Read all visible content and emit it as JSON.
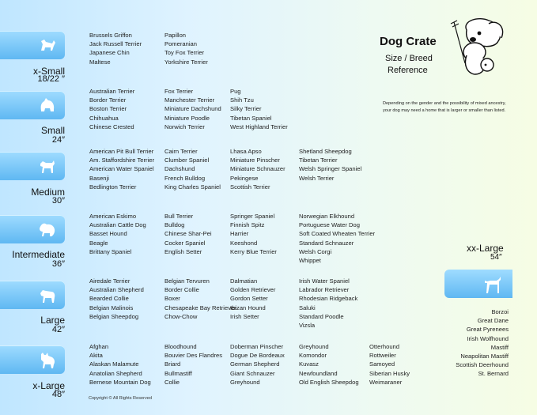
{
  "header": {
    "title": "Dog Crate",
    "subtitle_line1": "Size / Breed",
    "subtitle_line2": "Reference",
    "note_line1": "Depending on the gender and the possibility of mixed ancestry,",
    "note_line2": "your dog may need  a home that is larger or smaller than listed."
  },
  "sizes": [
    {
      "name": "x-Small",
      "dim": "18/22 ″",
      "icon": "small-dog-silhouette-icon",
      "columns": [
        [
          "Brussels Griffon",
          "Jack Russell Terrier",
          "Japanese Chin",
          "Maltese"
        ],
        [
          "Papillon",
          "Pomeranian",
          "Toy Fox Terrier",
          "Yorkshire Terrier"
        ]
      ]
    },
    {
      "name": "Small",
      "dim": "24″",
      "icon": "small-fluffy-dog-icon",
      "columns": [
        [
          "Australian Terrier",
          "Border Terrier",
          "Boston Terrier",
          "Chihuahua",
          "Chinese Crested"
        ],
        [
          "Fox Terrier",
          "Manchester Terrier",
          "Miniature Dachshund",
          "Miniature Poodle",
          "Norwich Terrier"
        ],
        [
          "Pug",
          "Shih Tzu",
          "Silky Terrier",
          "Tibetan Spaniel",
          "West Highland Terrier"
        ]
      ]
    },
    {
      "name": "Medium",
      "dim": "30″",
      "icon": "terrier-dog-icon",
      "columns": [
        [
          "American Pit Bull Terrier",
          "Am. Staffordshire Terrier",
          "American Water Spaniel",
          "Basenji",
          "Bedlington Terrier"
        ],
        [
          "Cairn Terrier",
          "Clumber Spaniel",
          "Dachshund",
          "French Bulldog",
          "King Charles Spaniel"
        ],
        [
          "Lhasa Apso",
          "Miniature Pinscher",
          "Miniature Schnauzer",
          "Pekingese",
          "Scottish Terrier"
        ],
        [
          "Shetland Sheepdog",
          "Tibetan Terrier",
          "Welsh Springer Spaniel",
          "Welsh Terrier"
        ]
      ]
    },
    {
      "name": "Intermediate",
      "dim": "36″",
      "icon": "poodle-dog-icon",
      "columns": [
        [
          "American Eskimo",
          "Australian Cattle Dog",
          "Basset Hound",
          "Beagle",
          "Brittany Spaniel"
        ],
        [
          "Bull Terrier",
          "Bulldog",
          "Chinese Shar-Pei",
          "Cocker Spaniel",
          "English Setter"
        ],
        [
          "Springer Spaniel",
          "Finnish Spitz",
          "Harrier",
          "Keeshond",
          "Kerry Blue Terrier"
        ],
        [
          "Norwegian Elkhound",
          "Portuguese Water Dog",
          "Soft Coated Wheaten Terrier",
          "Standard Schnauzer",
          "Welsh Corgi",
          "Whippet"
        ]
      ]
    },
    {
      "name": "Large",
      "dim": "42″",
      "icon": "retriever-dog-icon",
      "columns": [
        [
          "Airedale Terrier",
          "Australian Shepherd",
          "Bearded Collie",
          "Belgian Malinois",
          "Belgian Sheepdog"
        ],
        [
          "Belgian Tervuren",
          "Border Collie",
          "Boxer",
          "Chesapeake Bay Retriever",
          "Chow-Chow"
        ],
        [
          "Dalmatian",
          "Golden Retriever",
          "Gordon Setter",
          "Ibizan Hound",
          "Irish Setter"
        ],
        [
          "Irish Water Spaniel",
          "Labrador Retriever",
          "Rhodesian Ridgeback",
          "Saluki",
          "Standard Poodle",
          "Vizsla"
        ]
      ]
    },
    {
      "name": "x-Large",
      "dim": "48″",
      "icon": "husky-dog-icon",
      "columns": [
        [
          "Afghan",
          "Akita",
          "Alaskan Malamute",
          "Anatolian Shepherd",
          "Bernese Mountain Dog"
        ],
        [
          "Bloodhound",
          "Bouvier Des Flandres",
          "Briard",
          "Bullmastiff",
          "Collie"
        ],
        [
          "Doberman Pinscher",
          "Dogue De Bordeaux",
          "German Shepherd",
          "Giant Schnauzer",
          "Greyhound"
        ],
        [
          "Greyhound",
          "Komondor",
          "Kuvasz",
          "Newfoundland",
          "Old English Sheepdog"
        ],
        [
          "Otterhound",
          "Rottweiler",
          "Samoyed",
          "Siberian Husky",
          "Weimaraner"
        ]
      ]
    }
  ],
  "xx_large": {
    "name": "xx-Large",
    "dim": "54″",
    "icon": "great-dane-icon",
    "breeds": [
      "Borzoi",
      "Great Dane",
      "Great Pyrenees",
      "Irish Wolfhound",
      "Mastiff",
      "Neapolitan Mastiff",
      "Scottish Deerhound",
      "St. Bernard"
    ]
  },
  "footer": {
    "copyright": "Copyright © All Rights Reserved"
  },
  "colors": {
    "tab_top": "#9fdcff",
    "tab_bottom": "#5fb8f2"
  }
}
